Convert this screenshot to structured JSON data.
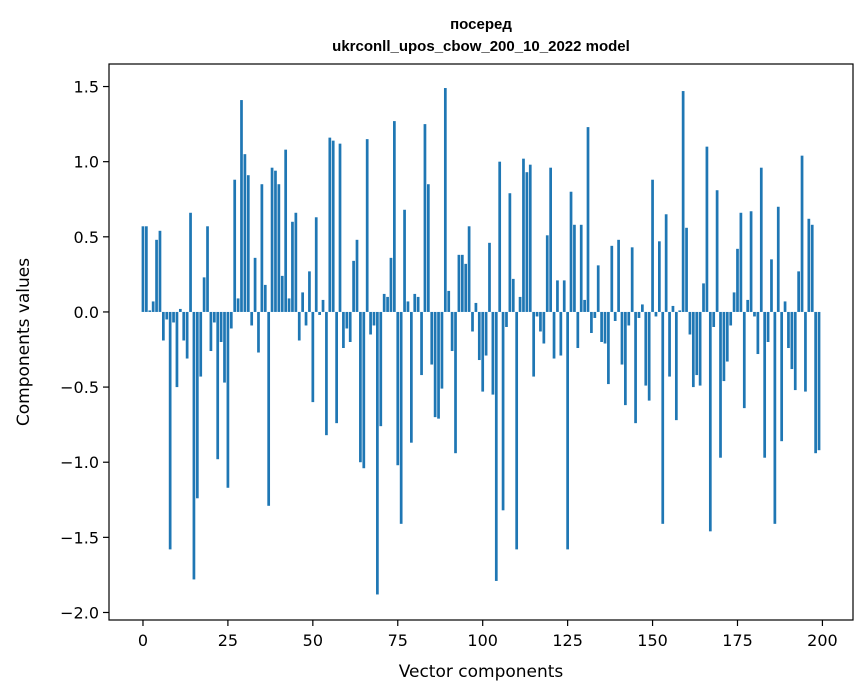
{
  "chart_data": {
    "type": "bar",
    "title_line1": "посеред",
    "title_line2": "ukrconll_upos_cbow_200_10_2022 model",
    "xlabel": "Vector components",
    "ylabel": "Components values",
    "xlim": [
      -10,
      209
    ],
    "ylim": [
      -2.05,
      1.65
    ],
    "xticks": [
      0,
      25,
      50,
      75,
      100,
      125,
      150,
      175,
      200
    ],
    "xtick_labels": [
      "0",
      "25",
      "50",
      "75",
      "100",
      "125",
      "150",
      "175",
      "200"
    ],
    "yticks": [
      -2.0,
      -1.5,
      -1.0,
      -0.5,
      0.0,
      0.5,
      1.0,
      1.5
    ],
    "ytick_labels": [
      "−2.0",
      "−1.5",
      "−1.0",
      "−0.5",
      "0.0",
      "0.5",
      "1.0",
      "1.5"
    ],
    "grid": false,
    "bar_color": "#1f77b4",
    "values": [
      0.57,
      0.57,
      0.01,
      0.07,
      0.48,
      0.54,
      -0.19,
      -0.05,
      -1.58,
      -0.07,
      -0.5,
      0.02,
      -0.19,
      -0.31,
      0.66,
      -1.78,
      -1.24,
      -0.43,
      0.23,
      0.57,
      -0.26,
      -0.07,
      -0.98,
      -0.2,
      -0.47,
      -1.17,
      -0.11,
      0.88,
      0.09,
      1.41,
      1.05,
      0.91,
      -0.09,
      0.36,
      -0.27,
      0.85,
      0.18,
      -1.29,
      0.96,
      0.94,
      0.85,
      0.24,
      1.08,
      0.09,
      0.6,
      0.66,
      -0.19,
      0.13,
      -0.09,
      0.27,
      -0.6,
      0.63,
      -0.02,
      0.08,
      -0.82,
      1.16,
      1.14,
      -0.74,
      1.12,
      -0.24,
      -0.11,
      -0.2,
      0.34,
      0.48,
      -1.0,
      -1.04,
      1.15,
      -0.15,
      -0.09,
      -1.88,
      -0.76,
      0.12,
      0.1,
      0.36,
      1.27,
      -1.02,
      -1.41,
      0.68,
      0.07,
      -0.87,
      0.12,
      0.1,
      -0.42,
      1.25,
      0.85,
      -0.35,
      -0.7,
      -0.71,
      -0.51,
      1.49,
      0.14,
      -0.26,
      -0.94,
      0.38,
      0.38,
      0.32,
      0.57,
      -0.13,
      0.06,
      -0.32,
      -0.53,
      -0.29,
      0.46,
      -0.55,
      -1.79,
      1.0,
      -1.32,
      -0.1,
      0.79,
      0.22,
      -1.58,
      0.1,
      1.02,
      0.93,
      0.98,
      -0.43,
      -0.03,
      -0.13,
      -0.21,
      0.51,
      0.96,
      -0.31,
      0.21,
      -0.29,
      0.21,
      -1.58,
      0.8,
      0.58,
      -0.24,
      0.58,
      0.08,
      1.23,
      -0.14,
      -0.04,
      0.31,
      -0.2,
      -0.21,
      -0.48,
      0.44,
      -0.06,
      0.48,
      -0.35,
      -0.62,
      -0.09,
      0.43,
      -0.74,
      -0.04,
      0.05,
      -0.49,
      -0.59,
      0.88,
      -0.03,
      0.47,
      -1.41,
      0.65,
      -0.43,
      0.04,
      -0.72,
      0.01,
      1.47,
      0.56,
      -0.15,
      -0.5,
      -0.42,
      -0.49,
      0.19,
      1.1,
      -1.46,
      -0.1,
      0.81,
      -0.97,
      -0.46,
      -0.33,
      -0.09,
      0.13,
      0.42,
      0.66,
      -0.64,
      0.08,
      0.67,
      -0.03,
      -0.28,
      0.96,
      -0.97,
      -0.2,
      0.35,
      -1.41,
      0.7,
      -0.86,
      0.07,
      -0.24,
      -0.38,
      -0.52,
      0.27,
      1.04,
      -0.53,
      0.62,
      0.58,
      -0.94,
      -0.92
    ]
  }
}
